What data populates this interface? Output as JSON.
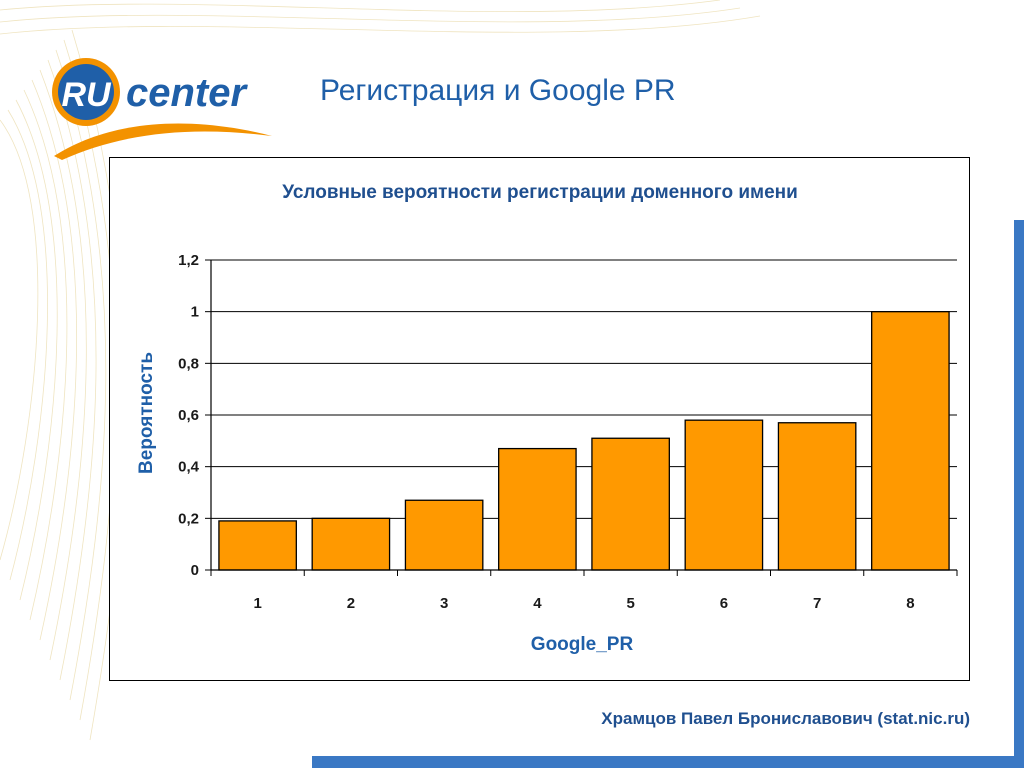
{
  "slide": {
    "title": "Регистрация и Google PR",
    "footer": "Храмцов Павел Брониславович (stat.nic.ru)"
  },
  "logo": {
    "part1": "RU",
    "part2": "center"
  },
  "colors": {
    "accent": "#1f5fa8",
    "bar": "#ff9900",
    "logo_orange": "#f39200"
  },
  "chart_data": {
    "type": "bar",
    "title": "Условные вероятности регистрации доменного имени",
    "xlabel": "Google_PR",
    "ylabel": "Вероятность",
    "categories": [
      "1",
      "2",
      "3",
      "4",
      "5",
      "6",
      "7",
      "8"
    ],
    "values": [
      0.19,
      0.2,
      0.27,
      0.47,
      0.51,
      0.58,
      0.57,
      1.0
    ],
    "ylim": [
      0,
      1.2
    ],
    "yticks": [
      "0",
      "0,2",
      "0,4",
      "0,6",
      "0,8",
      "1",
      "1,2"
    ],
    "grid": true,
    "legend": "none"
  }
}
